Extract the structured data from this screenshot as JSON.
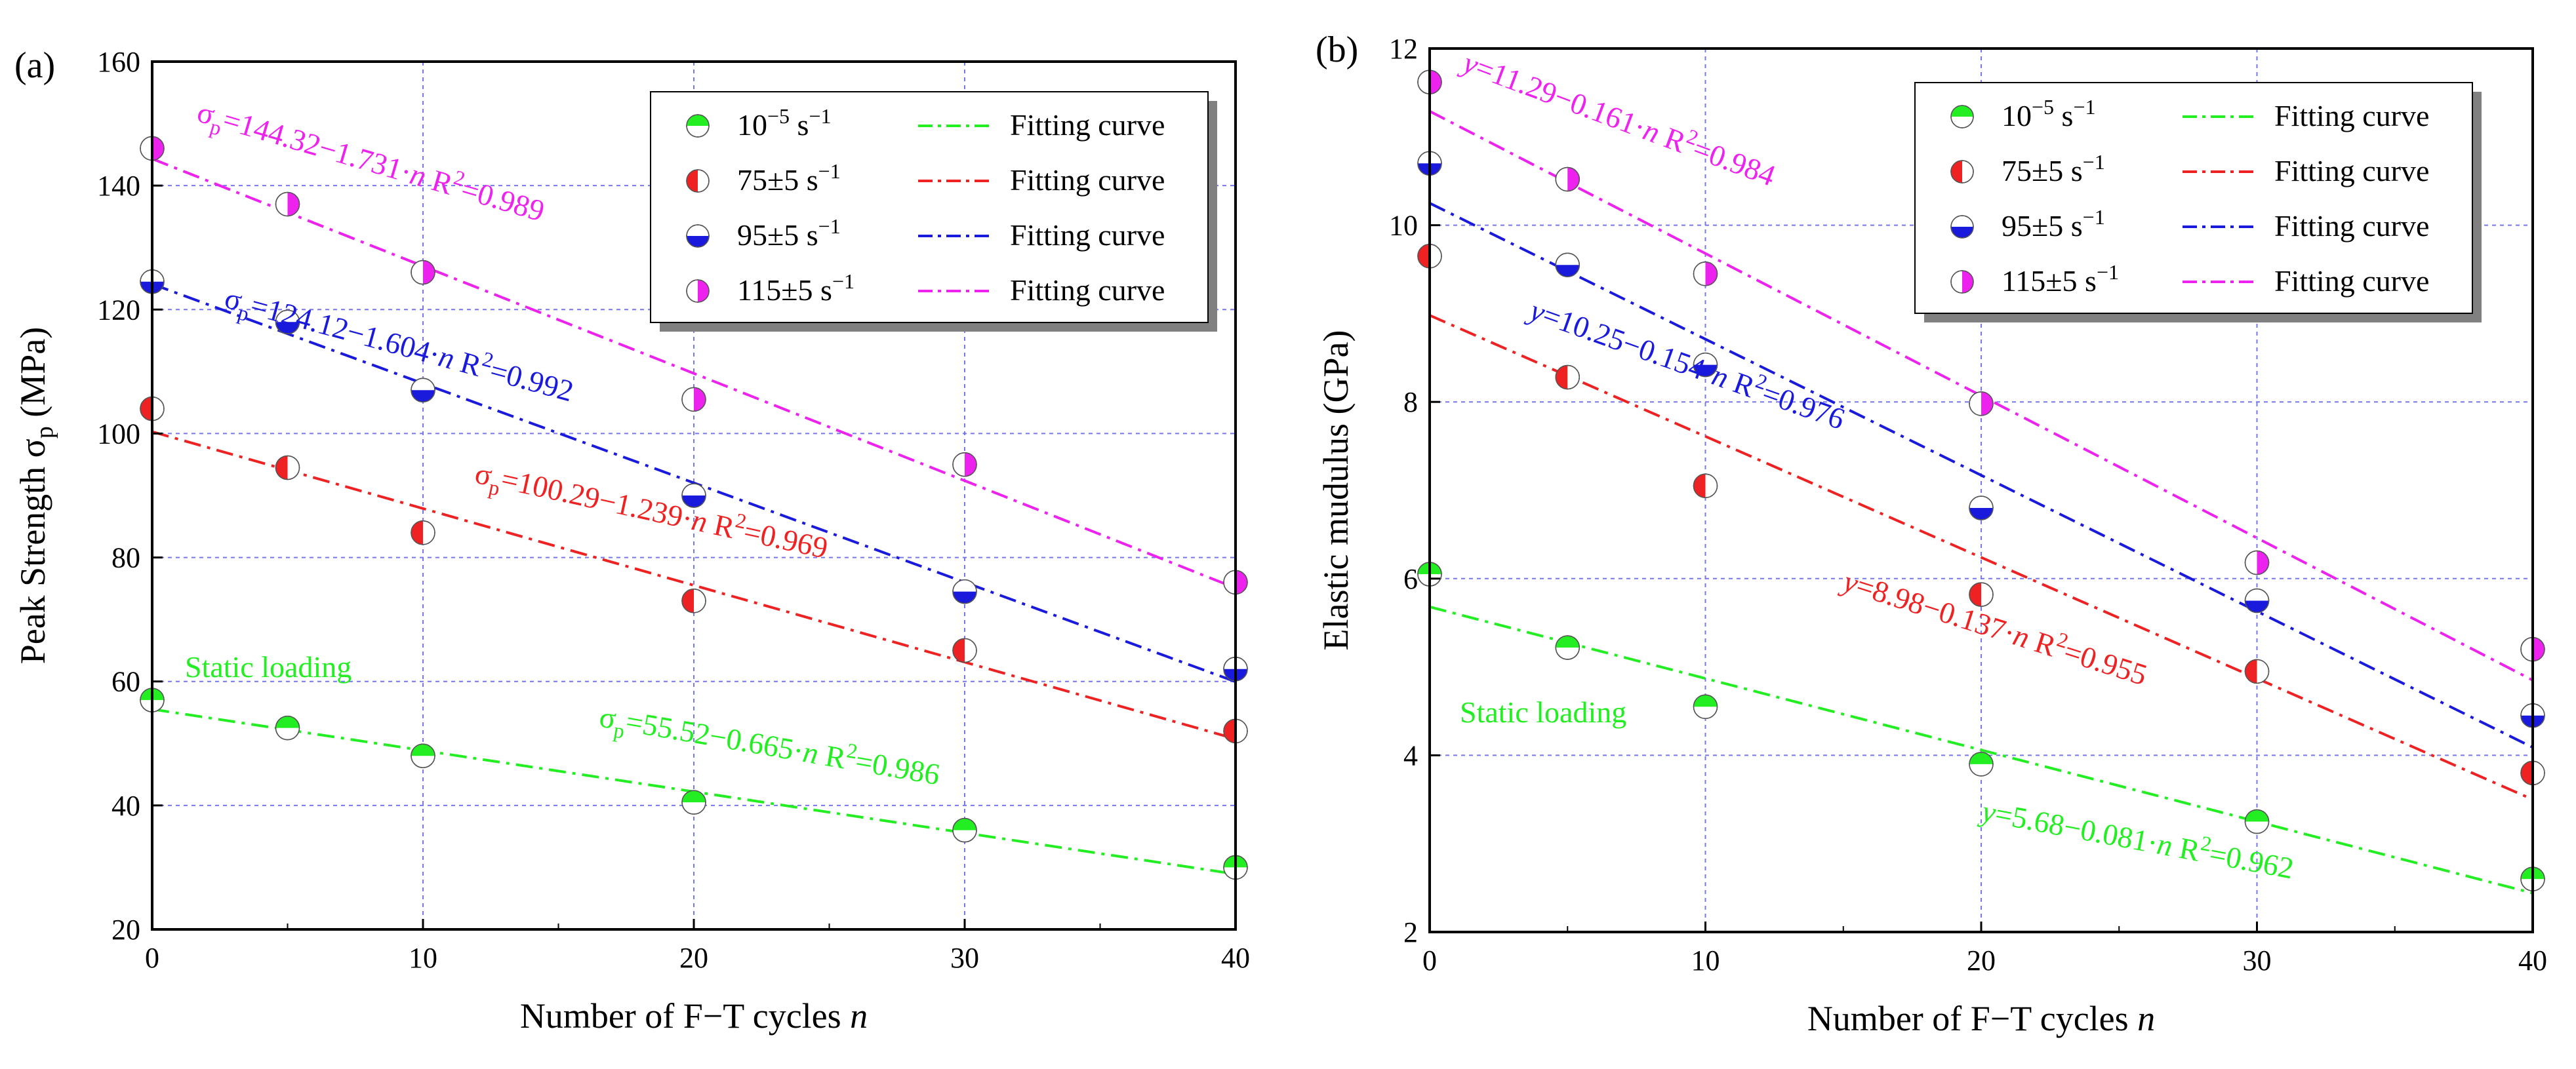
{
  "chart_data": [
    {
      "panel_label": "(a)",
      "type": "scatter",
      "xlabel": "Number of F−T cycles n",
      "ylabel": "Peak Strength σp (MPa)",
      "xlim": [
        0,
        40
      ],
      "ylim": [
        20,
        160
      ],
      "xticks": [
        "0",
        "10",
        "20",
        "30",
        "40"
      ],
      "yticks": [
        "20",
        "40",
        "60",
        "80",
        "100",
        "120",
        "140",
        "160"
      ],
      "grid": true,
      "legend_position": "top-right",
      "x": [
        0,
        5,
        10,
        20,
        30,
        40
      ],
      "series": [
        {
          "name": "10⁻⁵ s⁻¹",
          "fit_name": "Fitting curve",
          "color": "#22ee22",
          "fill_style": "top",
          "values": [
            57,
            52.5,
            48,
            40.5,
            36,
            30
          ],
          "fit": [
            55.52,
            -0.665
          ],
          "equation": "σp=55.52−0.665·n   R²=0.986"
        },
        {
          "name": "75±5 s⁻¹",
          "fit_name": "Fitting curve",
          "color": "#ee2222",
          "fill_style": "left",
          "values": [
            104,
            94.5,
            84,
            73,
            65,
            52
          ],
          "fit": [
            100.29,
            -1.239
          ],
          "equation": "σp=100.29−1.239·n   R²=0.969"
        },
        {
          "name": "95±5 s⁻¹",
          "fit_name": "Fitting curve",
          "color": "#1a1add",
          "fill_style": "bottom",
          "values": [
            124.5,
            118,
            107,
            90,
            74.5,
            62
          ],
          "fit": [
            124.12,
            -1.604
          ],
          "equation": "σp=124.12−1.604·n   R²=0.992"
        },
        {
          "name": "115±5 s⁻¹",
          "fit_name": "Fitting curve",
          "color": "#ee22ee",
          "fill_style": "right",
          "values": [
            146,
            137,
            126,
            105.5,
            95,
            76
          ],
          "fit": [
            144.32,
            -1.731
          ],
          "equation": "σp=144.32−1.731·n   R²=0.989"
        }
      ],
      "annotations": [
        "Static loading"
      ]
    },
    {
      "panel_label": "(b)",
      "type": "scatter",
      "xlabel": "Number of F−T cycles n",
      "ylabel": "Elastic mudulus (GPa)",
      "xlim": [
        0,
        40
      ],
      "ylim": [
        2,
        12
      ],
      "xticks": [
        "0",
        "10",
        "20",
        "30",
        "40"
      ],
      "yticks": [
        "2",
        "4",
        "6",
        "8",
        "10",
        "12"
      ],
      "grid": true,
      "legend_position": "top-right",
      "x": [
        0,
        5,
        10,
        20,
        30,
        40
      ],
      "series": [
        {
          "name": "10⁻⁵ s⁻¹",
          "fit_name": "Fitting curve",
          "color": "#22ee22",
          "fill_style": "top",
          "values": [
            6.05,
            5.22,
            4.55,
            3.9,
            3.25,
            2.6
          ],
          "fit": [
            5.68,
            -0.081
          ],
          "equation": "y=5.68−0.081·n   R²=0.962"
        },
        {
          "name": "75±5 s⁻¹",
          "fit_name": "Fitting curve",
          "color": "#ee2222",
          "fill_style": "left",
          "values": [
            9.65,
            8.28,
            7.05,
            5.82,
            4.95,
            3.8
          ],
          "fit": [
            8.98,
            -0.137
          ],
          "equation": "y=8.98−0.137·n   R²=0.955"
        },
        {
          "name": "95±5 s⁻¹",
          "fit_name": "Fitting curve",
          "color": "#1a1add",
          "fill_style": "bottom",
          "values": [
            10.7,
            9.55,
            8.42,
            6.8,
            5.75,
            4.45
          ],
          "fit": [
            10.25,
            -0.154
          ],
          "equation": "y=10.25−0.154·n   R²=0.976"
        },
        {
          "name": "115±5 s⁻¹",
          "fit_name": "Fitting curve",
          "color": "#ee22ee",
          "fill_style": "right",
          "values": [
            11.62,
            10.52,
            9.45,
            7.98,
            6.18,
            5.2
          ],
          "fit": [
            11.29,
            -0.161
          ],
          "equation": "y=11.29−0.161·n   R²=0.984"
        }
      ],
      "annotations": [
        "Static loading"
      ]
    }
  ]
}
